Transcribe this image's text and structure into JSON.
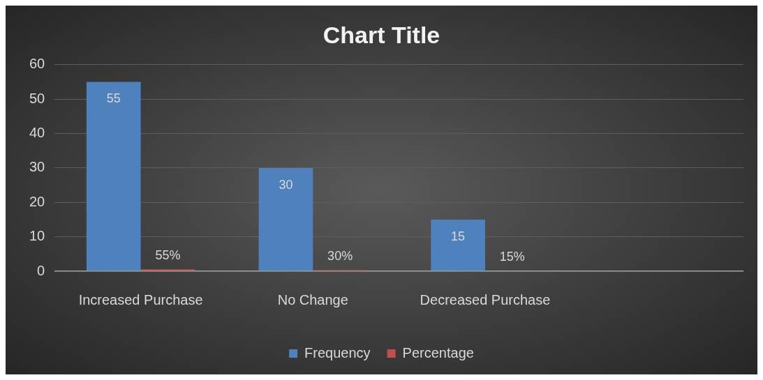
{
  "chart_data": {
    "type": "bar",
    "title": "Chart Title",
    "categories": [
      "Increased Purchase",
      "No Change",
      "Decreased Purchase",
      null
    ],
    "series": [
      {
        "name": "Frequency",
        "color": "#4f81bd",
        "values": [
          55,
          30,
          15,
          null
        ],
        "value_labels": [
          "55",
          "30",
          "15",
          null
        ]
      },
      {
        "name": "Percentage",
        "color": "#c0504d",
        "values": [
          0.55,
          0.3,
          0.15,
          null
        ],
        "value_labels": [
          "55%",
          "30%",
          "15%",
          null
        ]
      }
    ],
    "ylim": [
      0,
      60
    ],
    "yticks": [
      0,
      10,
      20,
      30,
      40,
      50,
      60
    ],
    "grid": "y",
    "legend": "bottom"
  }
}
